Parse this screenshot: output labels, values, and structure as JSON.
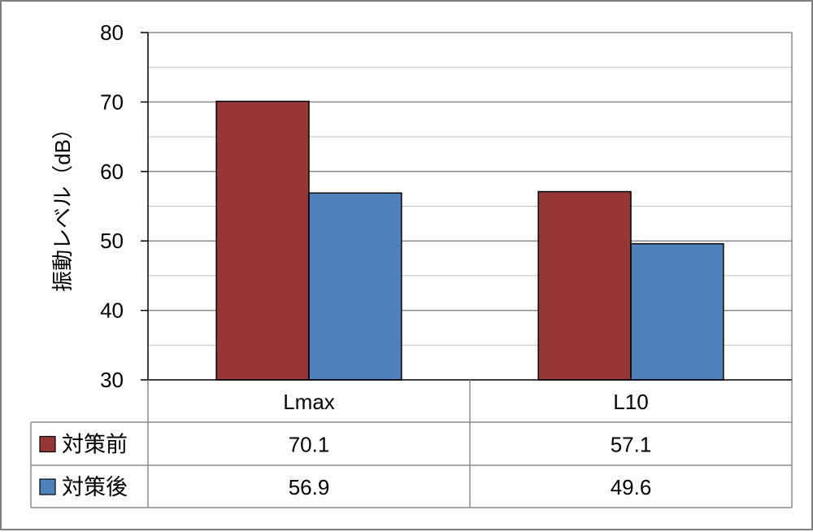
{
  "chart_data": {
    "type": "bar",
    "categories": [
      "Lmax",
      "L10"
    ],
    "series": [
      {
        "name": "対策前",
        "values": [
          70.1,
          57.1
        ],
        "color": "#953735"
      },
      {
        "name": "対策後",
        "values": [
          56.9,
          49.6
        ],
        "color": "#4f81bd"
      }
    ],
    "ylabel": "振動レベル（dB）",
    "xlabel": "",
    "ylim": [
      30,
      80
    ],
    "yticks": [
      30,
      40,
      50,
      60,
      70,
      80
    ],
    "yticks_text": [
      "30",
      "40",
      "50",
      "60",
      "70",
      "80"
    ],
    "grid": true,
    "legend": "data-table-left",
    "data_table": {
      "rows": [
        {
          "label": "対策前",
          "cells": [
            "70.1",
            "57.1"
          ]
        },
        {
          "label": "対策後",
          "cells": [
            "56.9",
            "49.6"
          ]
        }
      ]
    }
  }
}
